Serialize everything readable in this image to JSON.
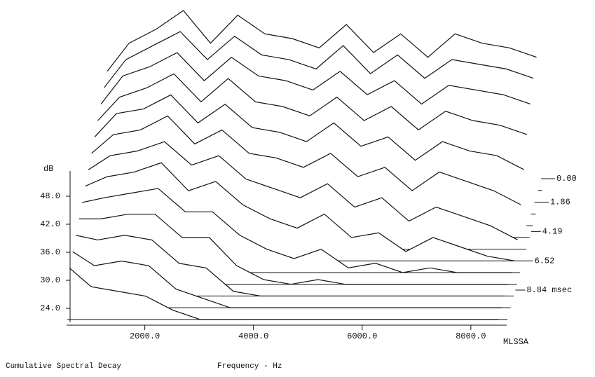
{
  "chart_data": {
    "type": "waterfall",
    "title": "Cumulative Spectral Decay",
    "xlabel": "Frequency - Hz",
    "ylabel": "dB",
    "corner_label": "MLSSA",
    "x": [
      600,
      1000,
      1500,
      2000,
      2500,
      3000,
      3500,
      4000,
      4500,
      5000,
      5500,
      6000,
      6500,
      7000,
      7500,
      8000,
      8500
    ],
    "xlim": [
      560,
      8660
    ],
    "xticks": [
      {
        "value": 2000,
        "label": "2000.0"
      },
      {
        "value": 4000,
        "label": "4000.0"
      },
      {
        "value": 6000,
        "label": "6000.0"
      },
      {
        "value": 8000,
        "label": "8000.0"
      }
    ],
    "ylim": [
      21,
      57
    ],
    "yticks": [
      {
        "value": 24,
        "label": "24.0"
      },
      {
        "value": 30,
        "label": "30.0"
      },
      {
        "value": 36,
        "label": "36.0"
      },
      {
        "value": 42,
        "label": "42.0"
      },
      {
        "value": 48,
        "label": "48.0"
      }
    ],
    "zlim": [
      0,
      11.4
    ],
    "zticks": [
      {
        "value": 0,
        "label": "0.00"
      },
      {
        "value": 1.86,
        "label": "1.86"
      },
      {
        "value": 4.19,
        "label": "4.19"
      },
      {
        "value": 6.52,
        "label": "6.52"
      },
      {
        "value": 8.84,
        "label": "8.84 msec"
      }
    ],
    "color": "#111111",
    "series": [
      {
        "t": 0,
        "values": [
          44,
          50,
          53,
          57,
          50,
          56,
          52,
          51,
          49,
          54,
          48,
          52,
          47,
          52,
          50,
          49,
          47
        ]
      },
      {
        "t": 0.93,
        "values": [
          43,
          49,
          52,
          55,
          49,
          54,
          50,
          49,
          47,
          52,
          46,
          50,
          45,
          49,
          48,
          47,
          45
        ]
      },
      {
        "t": 1.86,
        "values": [
          42,
          48,
          50,
          53,
          47,
          52,
          48,
          47,
          45,
          49,
          44,
          47,
          42,
          46,
          45,
          44,
          42
        ]
      },
      {
        "t": 2.8,
        "values": [
          41,
          46,
          48,
          51,
          45,
          50,
          45,
          44,
          42,
          46,
          41,
          44,
          39,
          43,
          41,
          40,
          38
        ]
      },
      {
        "t": 3.73,
        "values": [
          40,
          45,
          46,
          49,
          43,
          47,
          42,
          41,
          39,
          43,
          38,
          40,
          35,
          39,
          37,
          36,
          33
        ]
      },
      {
        "t": 4.66,
        "values": [
          39,
          43,
          44,
          47,
          41,
          44,
          39,
          38,
          36,
          39,
          34,
          36,
          31,
          35,
          33,
          31,
          28
        ]
      },
      {
        "t": 5.59,
        "values": [
          38,
          41,
          42,
          44,
          39,
          41,
          36,
          34,
          32,
          35,
          30,
          32,
          27,
          30,
          28,
          26,
          23
        ]
      },
      {
        "t": 6.52,
        "values": [
          37,
          39,
          40,
          42,
          36,
          38,
          33,
          30,
          28,
          31,
          26,
          27,
          23,
          26,
          24,
          22,
          21
        ]
      },
      {
        "t": 7.45,
        "values": [
          36,
          37,
          38,
          39,
          34,
          34,
          29,
          26,
          24,
          26,
          22,
          23,
          21,
          22,
          21,
          21,
          21
        ]
      },
      {
        "t": 8.38,
        "values": [
          35,
          35,
          36,
          36,
          31,
          31,
          25,
          22,
          21,
          22,
          21,
          21,
          21,
          21,
          21,
          21,
          21
        ]
      },
      {
        "t": 9.31,
        "values": [
          34,
          33,
          34,
          33,
          28,
          27,
          22,
          21,
          21,
          21,
          21,
          21,
          21,
          21,
          21,
          21,
          21
        ]
      },
      {
        "t": 10.24,
        "values": [
          33,
          30,
          31,
          30,
          25,
          23,
          21,
          21,
          21,
          21,
          21,
          21,
          21,
          21,
          21,
          21,
          21
        ]
      },
      {
        "t": 11.17,
        "values": [
          32,
          28,
          27,
          26,
          23,
          21,
          21,
          21,
          21,
          21,
          21,
          21,
          21,
          21,
          21,
          21,
          21
        ]
      }
    ]
  }
}
